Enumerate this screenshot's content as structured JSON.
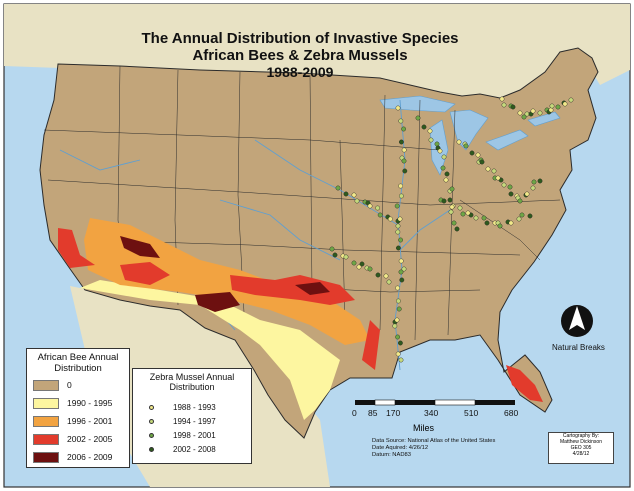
{
  "title": {
    "line1": "The Annual Distribution of Invastive Species",
    "line2": "African Bees & Zebra Mussels",
    "line3": "1988-2009"
  },
  "colors": {
    "ocean": "#b7d8ef",
    "land": "#c2a57a",
    "neighbors": "#e8e2c4",
    "lakes": "#9dc6e5",
    "rivers": "#5f9fd1",
    "state_lines": "#2b2b2b"
  },
  "bee_legend": {
    "title_line1": "African Bee Annual",
    "title_line2": "Distribution",
    "classes": [
      {
        "label": "0",
        "color": "#c2a57a"
      },
      {
        "label": "1990 - 1995",
        "color": "#fdf6a0"
      },
      {
        "label": "1996 - 2001",
        "color": "#f2a341"
      },
      {
        "label": "2002 - 2005",
        "color": "#e23b2c"
      },
      {
        "label": "2006 - 2009",
        "color": "#6d1010"
      }
    ]
  },
  "zebra_legend": {
    "title_line1": "Zebra Mussel Annual",
    "title_line2": "Distribution",
    "classes": [
      {
        "label": "1988 - 1993",
        "color": "#f2e98a"
      },
      {
        "label": "1994 - 1997",
        "color": "#c5d97c"
      },
      {
        "label": "1998 - 2001",
        "color": "#6ea646"
      },
      {
        "label": "2002 - 2008",
        "color": "#2f5a1e"
      }
    ]
  },
  "scale_bar": {
    "ticks": [
      "0",
      "85",
      "170",
      "340",
      "510",
      "680"
    ],
    "unit": "Miles"
  },
  "north_arrow": {
    "label": "Natural Breaks"
  },
  "source": {
    "line1": "Data Source:  National Atlas of the United States",
    "line2": "Date Aquired:  4/26/12",
    "line3": "Datum:   NAD83"
  },
  "credit": {
    "line1": "Cartography By:",
    "line2": "Matthew Dickinson",
    "line3": "GEO 305",
    "line4": "4/28/12"
  }
}
